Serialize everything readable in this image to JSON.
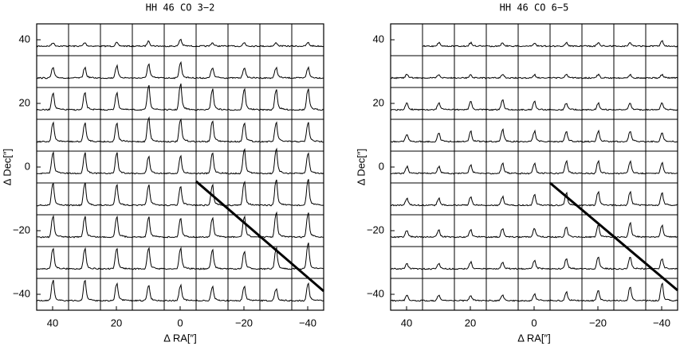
{
  "chart_data": [
    {
      "type": "grid",
      "title": "HH 46 CO 3−2",
      "xlabel": "Δ RA[″]",
      "ylabel": "Δ Dec[″]",
      "xlim": [
        45,
        -45
      ],
      "ylim": [
        -45,
        45
      ],
      "xticks": [
        40,
        20,
        0,
        {
          "value": -20,
          "label": "−20"
        },
        {
          "value": -40,
          "label": "−40"
        }
      ],
      "yticks": [
        {
          "value": -40,
          "label": "−40"
        },
        {
          "value": -20,
          "label": "−20"
        },
        0,
        20,
        40
      ],
      "color": "#000000",
      "peaks": [
        [
          0.1,
          0.1,
          0.1,
          0.15,
          0.2,
          0.1,
          0.1,
          0.1,
          0.1
        ],
        [
          0.3,
          0.3,
          0.35,
          0.4,
          0.45,
          0.3,
          0.3,
          0.3,
          0.3
        ],
        [
          0.5,
          0.5,
          0.5,
          0.7,
          0.75,
          0.6,
          0.6,
          0.6,
          0.6
        ],
        [
          0.55,
          0.55,
          0.55,
          0.7,
          0.65,
          0.6,
          0.55,
          0.55,
          0.55
        ],
        [
          0.6,
          0.6,
          0.6,
          0.5,
          0.5,
          0.6,
          0.7,
          0.7,
          0.6
        ],
        [
          0.65,
          0.65,
          0.6,
          0.6,
          0.55,
          0.6,
          0.7,
          0.75,
          0.75
        ],
        [
          0.6,
          0.6,
          0.6,
          0.6,
          0.55,
          0.55,
          0.6,
          0.7,
          0.7
        ],
        [
          0.6,
          0.6,
          0.6,
          0.6,
          0.6,
          0.55,
          0.5,
          0.6,
          0.75
        ],
        [
          0.6,
          0.6,
          0.5,
          0.45,
          0.45,
          0.4,
          0.4,
          0.35,
          0.5
        ]
      ],
      "diagonal": {
        "x": [
          -5,
          -45
        ],
        "y": [
          -4.5,
          -39
        ]
      }
    },
    {
      "type": "grid",
      "title": "HH 46 CO 6−5",
      "xlabel": "Δ RA[″]",
      "ylabel": "Δ Dec[″]",
      "xlim": [
        45,
        -45
      ],
      "ylim": [
        -45,
        45
      ],
      "xticks": [
        40,
        20,
        0,
        {
          "value": -20,
          "label": "−20"
        },
        {
          "value": -40,
          "label": "−40"
        }
      ],
      "yticks": [
        {
          "value": -40,
          "label": "−40"
        },
        {
          "value": -20,
          "label": "−20"
        },
        0,
        20,
        40
      ],
      "color": "#000000",
      "peaks": [
        [
          null,
          0.1,
          0.1,
          0.1,
          0.1,
          0.1,
          0.1,
          0.1,
          0.15
        ],
        [
          0.1,
          0.1,
          0.1,
          0.1,
          0.1,
          0.1,
          0.1,
          0.1,
          0.1
        ],
        [
          0.2,
          0.2,
          0.25,
          0.3,
          0.25,
          0.2,
          0.2,
          0.2,
          0.2
        ],
        [
          0.2,
          0.25,
          0.3,
          0.35,
          0.3,
          0.3,
          0.3,
          0.3,
          0.25
        ],
        [
          0.2,
          0.2,
          0.25,
          0.3,
          0.3,
          0.35,
          0.35,
          0.35,
          0.3
        ],
        [
          0.2,
          0.2,
          0.25,
          0.25,
          0.3,
          0.35,
          0.4,
          0.4,
          0.35
        ],
        [
          0.2,
          0.2,
          0.2,
          0.25,
          0.25,
          0.3,
          0.35,
          0.4,
          0.35
        ],
        [
          0.15,
          0.15,
          0.2,
          0.2,
          0.25,
          0.3,
          0.35,
          0.35,
          0.3
        ],
        [
          0.15,
          0.15,
          0.15,
          0.15,
          0.2,
          0.25,
          0.3,
          0.4,
          0.5
        ]
      ],
      "diagonal": {
        "x": [
          -5,
          -45
        ],
        "y": [
          -5,
          -38.75
        ]
      }
    }
  ]
}
